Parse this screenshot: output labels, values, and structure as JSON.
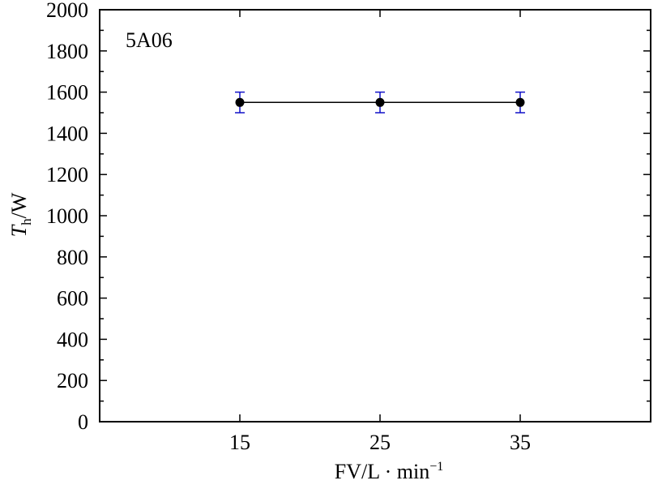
{
  "chart_data": {
    "type": "line",
    "annotation": "5A06",
    "xlabel": {
      "main": "FV/L · min",
      "superscript": "−1"
    },
    "ylabel": {
      "symbol": "T",
      "subscript": "h",
      "unit": "/W"
    },
    "categories": [
      "15",
      "25",
      "35"
    ],
    "ylim": [
      0,
      2000
    ],
    "yticks": [
      0,
      200,
      400,
      600,
      800,
      1000,
      1200,
      1400,
      1600,
      1800,
      2000
    ],
    "grid": false,
    "series": [
      {
        "values": [
          1550,
          1550,
          1550
        ],
        "error": [
          50,
          50,
          50
        ],
        "color": "#000000",
        "error_color": "#1010c8"
      }
    ]
  }
}
